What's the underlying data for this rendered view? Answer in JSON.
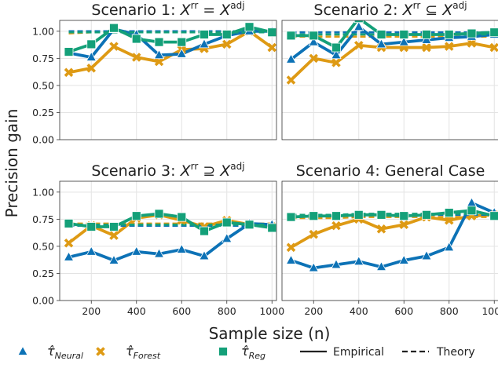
{
  "chart_data": {
    "type": "line",
    "ylabel": "Precision gain",
    "xlabel": "Sample size (n)",
    "xlim": [
      60,
      1020
    ],
    "ylim": [
      0.0,
      1.1
    ],
    "xticks": [
      200,
      400,
      600,
      800,
      1000
    ],
    "yticks": [
      0.0,
      0.25,
      0.5,
      0.75,
      1.0
    ],
    "ytick_labels": [
      "0.00",
      "0.25",
      "0.50",
      "0.75",
      "1.00"
    ],
    "grid": true,
    "legend_position": "bottom",
    "colors": {
      "Neural": "#0c72b6",
      "Forest": "#de9a14",
      "Reg": "#14a079"
    },
    "legend": {
      "series": [
        {
          "key": "Neural",
          "label_main": "τ̂",
          "label_sub": "Neural",
          "marker": "triangle"
        },
        {
          "key": "Forest",
          "label_main": "τ̂",
          "label_sub": "Forest",
          "marker": "x"
        },
        {
          "key": "Reg",
          "label_main": "τ̂",
          "label_sub": "Reg",
          "marker": "square"
        }
      ],
      "styles": [
        {
          "label": "Empirical",
          "dash": "solid"
        },
        {
          "label": "Theory",
          "dash": "dashed"
        }
      ]
    },
    "panels": [
      {
        "title_prefix": "Scenario 1: ",
        "title_math": {
          "lhs": "X",
          "lhs_sup": "rr",
          "op": "=",
          "rhs": "X",
          "rhs_sup": "adj"
        },
        "x": [
          100,
          200,
          300,
          400,
          500,
          600,
          700,
          800,
          900,
          1000
        ],
        "empirical": {
          "Forest": [
            0.62,
            0.66,
            0.86,
            0.76,
            0.72,
            0.83,
            0.84,
            0.88,
            1.0,
            0.85
          ],
          "Neural": [
            0.8,
            0.76,
            1.02,
            0.97,
            0.78,
            0.79,
            0.88,
            0.96,
            1.0,
            1.0
          ],
          "Reg": [
            0.81,
            0.88,
            1.03,
            0.93,
            0.9,
            0.9,
            0.97,
            0.97,
            1.04,
            0.99
          ]
        },
        "theory": {
          "Forest": [
            0.98,
            0.99,
            0.99,
            0.99,
            0.99,
            0.99,
            0.99,
            0.99,
            0.99,
            0.99
          ],
          "Neural": [
            1.0,
            1.0,
            1.0,
            1.0,
            1.0,
            1.0,
            1.0,
            1.0,
            1.0,
            1.0
          ],
          "Reg": [
            0.99,
            0.99,
            0.99,
            0.99,
            0.99,
            0.99,
            0.99,
            0.99,
            0.99,
            0.99
          ]
        }
      },
      {
        "title_prefix": "Scenario 2: ",
        "title_math": {
          "lhs": "X",
          "lhs_sup": "rr",
          "op": "⊆",
          "rhs": "X",
          "rhs_sup": "adj"
        },
        "x": [
          100,
          200,
          300,
          400,
          500,
          600,
          700,
          800,
          900,
          1000
        ],
        "empirical": {
          "Forest": [
            0.55,
            0.75,
            0.71,
            0.87,
            0.85,
            0.85,
            0.85,
            0.86,
            0.89,
            0.85
          ],
          "Neural": [
            0.74,
            0.9,
            0.78,
            1.04,
            0.88,
            0.9,
            0.92,
            0.94,
            0.95,
            0.97
          ],
          "Reg": [
            0.96,
            0.96,
            0.85,
            1.12,
            0.97,
            0.97,
            0.97,
            0.97,
            0.98,
            0.99
          ]
        },
        "theory": {
          "Forest": [
            0.95,
            0.95,
            0.95,
            0.95,
            0.95,
            0.95,
            0.95,
            0.95,
            0.95,
            0.95
          ],
          "Neural": [
            0.99,
            0.99,
            0.99,
            0.99,
            0.99,
            0.99,
            0.99,
            0.99,
            0.99,
            0.99
          ],
          "Reg": [
            0.97,
            0.97,
            0.97,
            0.97,
            0.97,
            0.97,
            0.97,
            0.97,
            0.97,
            0.97
          ]
        }
      },
      {
        "title_prefix": "Scenario 3: ",
        "title_math": {
          "lhs": "X",
          "lhs_sup": "rr",
          "op": "⊇",
          "rhs": "X",
          "rhs_sup": "adj"
        },
        "x": [
          100,
          200,
          300,
          400,
          500,
          600,
          700,
          800,
          900,
          1000
        ],
        "empirical": {
          "Forest": [
            0.53,
            0.69,
            0.6,
            0.76,
            0.79,
            0.74,
            0.68,
            0.74,
            0.7,
            0.68
          ],
          "Neural": [
            0.4,
            0.45,
            0.37,
            0.45,
            0.43,
            0.47,
            0.41,
            0.57,
            0.71,
            0.7
          ],
          "Reg": [
            0.71,
            0.68,
            0.68,
            0.78,
            0.8,
            0.77,
            0.64,
            0.72,
            0.7,
            0.67
          ]
        },
        "theory": {
          "Forest": [
            0.71,
            0.71,
            0.71,
            0.71,
            0.71,
            0.71,
            0.71,
            0.71,
            0.71,
            0.71
          ],
          "Neural": [
            0.69,
            0.69,
            0.69,
            0.69,
            0.69,
            0.69,
            0.69,
            0.69,
            0.69,
            0.69
          ],
          "Reg": [
            0.7,
            0.7,
            0.7,
            0.7,
            0.7,
            0.7,
            0.7,
            0.7,
            0.7,
            0.7
          ]
        }
      },
      {
        "title_prefix": "Scenario 4: General Case",
        "title_math": null,
        "x": [
          100,
          200,
          300,
          400,
          500,
          600,
          700,
          800,
          900,
          1000
        ],
        "empirical": {
          "Forest": [
            0.49,
            0.61,
            0.69,
            0.75,
            0.66,
            0.7,
            0.77,
            0.74,
            0.78,
            0.79
          ],
          "Neural": [
            0.37,
            0.3,
            0.33,
            0.36,
            0.31,
            0.37,
            0.41,
            0.49,
            0.9,
            0.81
          ],
          "Reg": [
            0.77,
            0.78,
            0.78,
            0.79,
            0.79,
            0.78,
            0.79,
            0.81,
            0.83,
            0.78
          ]
        },
        "theory": {
          "Forest": [
            0.76,
            0.76,
            0.76,
            0.77,
            0.77,
            0.77,
            0.77,
            0.77,
            0.77,
            0.77
          ],
          "Neural": [
            0.78,
            0.78,
            0.78,
            0.78,
            0.79,
            0.79,
            0.79,
            0.79,
            0.79,
            0.79
          ],
          "Reg": [
            0.79,
            0.79,
            0.79,
            0.8,
            0.8,
            0.8,
            0.8,
            0.8,
            0.8,
            0.8
          ]
        }
      }
    ]
  }
}
